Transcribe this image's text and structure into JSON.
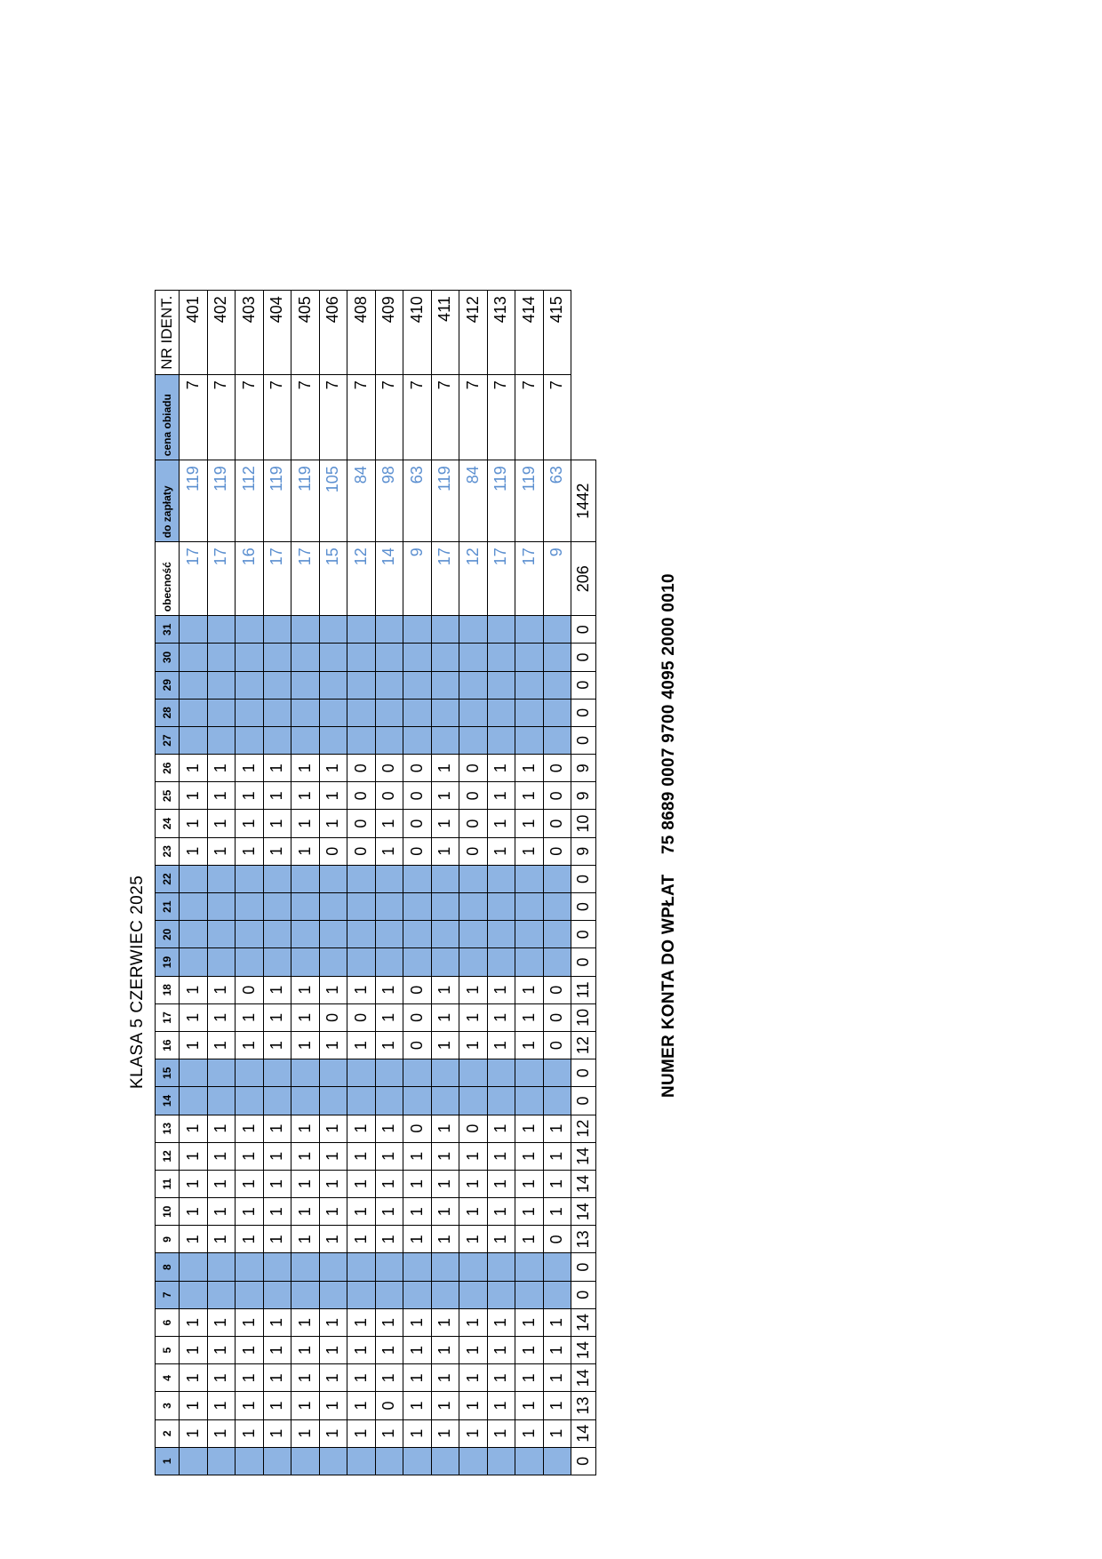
{
  "title": "KLASA 5 CZERWIEC 2025",
  "account": {
    "label": "NUMER KONTA  DO WPŁAT",
    "number": "75 8689 0007 9700 4095 2000 0010"
  },
  "colors": {
    "weekend": "#8eb4e3",
    "computed_text": "#5b8fd0"
  },
  "headers": {
    "days": [
      "1",
      "2",
      "3",
      "4",
      "5",
      "6",
      "7",
      "8",
      "9",
      "10",
      "11",
      "12",
      "13",
      "14",
      "15",
      "16",
      "17",
      "18",
      "19",
      "20",
      "21",
      "22",
      "23",
      "24",
      "25",
      "26",
      "27",
      "28",
      "29",
      "30",
      "31"
    ],
    "obecnosc": "obecność",
    "do_zaplaty": "do zapłaty",
    "cena": "cena obiadu",
    "ident": "NR IDENT."
  },
  "blue_days": [
    1,
    7,
    8,
    14,
    15,
    19,
    20,
    21,
    22,
    27,
    28,
    29,
    30,
    31
  ],
  "rows": [
    {
      "days": {
        "2": "1",
        "3": "1",
        "4": "1",
        "5": "1",
        "6": "1",
        "9": "1",
        "10": "1",
        "11": "1",
        "12": "1",
        "13": "1",
        "16": "1",
        "17": "1",
        "18": "1",
        "23": "1",
        "24": "1",
        "25": "1",
        "26": "1"
      },
      "obecnosc": "17",
      "zaplata": "119",
      "cena": "7",
      "ident": "401"
    },
    {
      "days": {
        "2": "1",
        "3": "1",
        "4": "1",
        "5": "1",
        "6": "1",
        "9": "1",
        "10": "1",
        "11": "1",
        "12": "1",
        "13": "1",
        "16": "1",
        "17": "1",
        "18": "1",
        "23": "1",
        "24": "1",
        "25": "1",
        "26": "1"
      },
      "obecnosc": "17",
      "zaplata": "119",
      "cena": "7",
      "ident": "402"
    },
    {
      "days": {
        "2": "1",
        "3": "1",
        "4": "1",
        "5": "1",
        "6": "1",
        "9": "1",
        "10": "1",
        "11": "1",
        "12": "1",
        "13": "1",
        "16": "1",
        "17": "1",
        "18": "0",
        "23": "1",
        "24": "1",
        "25": "1",
        "26": "1"
      },
      "obecnosc": "16",
      "zaplata": "112",
      "cena": "7",
      "ident": "403"
    },
    {
      "days": {
        "2": "1",
        "3": "1",
        "4": "1",
        "5": "1",
        "6": "1",
        "9": "1",
        "10": "1",
        "11": "1",
        "12": "1",
        "13": "1",
        "16": "1",
        "17": "1",
        "18": "1",
        "23": "1",
        "24": "1",
        "25": "1",
        "26": "1"
      },
      "obecnosc": "17",
      "zaplata": "119",
      "cena": "7",
      "ident": "404"
    },
    {
      "days": {
        "2": "1",
        "3": "1",
        "4": "1",
        "5": "1",
        "6": "1",
        "9": "1",
        "10": "1",
        "11": "1",
        "12": "1",
        "13": "1",
        "16": "1",
        "17": "1",
        "18": "1",
        "23": "1",
        "24": "1",
        "25": "1",
        "26": "1"
      },
      "obecnosc": "17",
      "zaplata": "119",
      "cena": "7",
      "ident": "405"
    },
    {
      "days": {
        "2": "1",
        "3": "1",
        "4": "1",
        "5": "1",
        "6": "1",
        "9": "1",
        "10": "1",
        "11": "1",
        "12": "1",
        "13": "1",
        "16": "1",
        "17": "0",
        "18": "1",
        "23": "0",
        "24": "1",
        "25": "1",
        "26": "1"
      },
      "obecnosc": "15",
      "zaplata": "105",
      "cena": "7",
      "ident": "406"
    },
    {
      "days": {
        "2": "1",
        "3": "1",
        "4": "1",
        "5": "1",
        "6": "1",
        "9": "1",
        "10": "1",
        "11": "1",
        "12": "1",
        "13": "1",
        "16": "1",
        "17": "0",
        "18": "1",
        "23": "0",
        "24": "0",
        "25": "0",
        "26": "0"
      },
      "obecnosc": "12",
      "zaplata": "84",
      "cena": "7",
      "ident": "408"
    },
    {
      "days": {
        "2": "1",
        "3": "0",
        "4": "1",
        "5": "1",
        "6": "1",
        "9": "1",
        "10": "1",
        "11": "1",
        "12": "1",
        "13": "1",
        "16": "1",
        "17": "1",
        "18": "1",
        "23": "1",
        "24": "1",
        "25": "0",
        "26": "0"
      },
      "obecnosc": "14",
      "zaplata": "98",
      "cena": "7",
      "ident": "409"
    },
    {
      "days": {
        "2": "1",
        "3": "1",
        "4": "1",
        "5": "1",
        "6": "1",
        "9": "1",
        "10": "1",
        "11": "1",
        "12": "1",
        "13": "0",
        "16": "0",
        "17": "0",
        "18": "0",
        "23": "0",
        "24": "0",
        "25": "0",
        "26": "0"
      },
      "obecnosc": "9",
      "zaplata": "63",
      "cena": "7",
      "ident": "410"
    },
    {
      "days": {
        "2": "1",
        "3": "1",
        "4": "1",
        "5": "1",
        "6": "1",
        "9": "1",
        "10": "1",
        "11": "1",
        "12": "1",
        "13": "1",
        "16": "1",
        "17": "1",
        "18": "1",
        "23": "1",
        "24": "1",
        "25": "1",
        "26": "1"
      },
      "obecnosc": "17",
      "zaplata": "119",
      "cena": "7",
      "ident": "411"
    },
    {
      "days": {
        "2": "1",
        "3": "1",
        "4": "1",
        "5": "1",
        "6": "1",
        "9": "1",
        "10": "1",
        "11": "1",
        "12": "1",
        "13": "0",
        "16": "1",
        "17": "1",
        "18": "1",
        "23": "0",
        "24": "0",
        "25": "0",
        "26": "0"
      },
      "obecnosc": "12",
      "zaplata": "84",
      "cena": "7",
      "ident": "412"
    },
    {
      "days": {
        "2": "1",
        "3": "1",
        "4": "1",
        "5": "1",
        "6": "1",
        "9": "1",
        "10": "1",
        "11": "1",
        "12": "1",
        "13": "1",
        "16": "1",
        "17": "1",
        "18": "1",
        "23": "1",
        "24": "1",
        "25": "1",
        "26": "1"
      },
      "obecnosc": "17",
      "zaplata": "119",
      "cena": "7",
      "ident": "413"
    },
    {
      "days": {
        "2": "1",
        "3": "1",
        "4": "1",
        "5": "1",
        "6": "1",
        "9": "1",
        "10": "1",
        "11": "1",
        "12": "1",
        "13": "1",
        "16": "1",
        "17": "1",
        "18": "1",
        "23": "1",
        "24": "1",
        "25": "1",
        "26": "1"
      },
      "obecnosc": "17",
      "zaplata": "119",
      "cena": "7",
      "ident": "414"
    },
    {
      "days": {
        "2": "1",
        "3": "1",
        "4": "1",
        "5": "1",
        "6": "1",
        "9": "0",
        "10": "1",
        "11": "1",
        "12": "1",
        "13": "1",
        "16": "0",
        "17": "0",
        "18": "0",
        "23": "0",
        "24": "0",
        "25": "0",
        "26": "0"
      },
      "obecnosc": "9",
      "zaplata": "63",
      "cena": "7",
      "ident": "415"
    }
  ],
  "totals": {
    "days": [
      "0",
      "14",
      "13",
      "14",
      "14",
      "14",
      "0",
      "0",
      "13",
      "14",
      "14",
      "14",
      "12",
      "0",
      "0",
      "12",
      "10",
      "11",
      "0",
      "0",
      "0",
      "0",
      "9",
      "10",
      "9",
      "9",
      "0",
      "0",
      "0",
      "0",
      "0"
    ],
    "obecnosc": "206",
    "zaplata": "1442"
  }
}
